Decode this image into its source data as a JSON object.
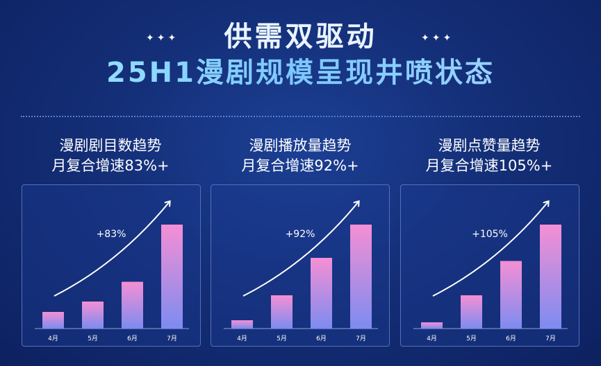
{
  "header": {
    "stars_left": "✦✦✦",
    "stars_right": "✦✦✦",
    "line1": "供需双驱动",
    "line2": "25H1漫剧规模呈现井喷状态"
  },
  "panels": [
    {
      "title": "漫剧剧目数趋势",
      "subtitle": "月复合增速83%+"
    },
    {
      "title": "漫剧播放量趋势",
      "subtitle": "月复合增速92%+"
    },
    {
      "title": "漫剧点赞量趋势",
      "subtitle": "月复合增速105%+"
    }
  ],
  "colors": {
    "bar_top": "#f58fd4",
    "bar_bottom": "#7d8bf0",
    "axis": "#8fa3d9"
  },
  "chart_data": [
    {
      "type": "bar",
      "categories": [
        "4月",
        "5月",
        "6月",
        "7月"
      ],
      "values": [
        16,
        26,
        45,
        100
      ],
      "annotation": "+83%",
      "ylim": [
        0,
        100
      ]
    },
    {
      "type": "bar",
      "categories": [
        "4月",
        "5月",
        "6月",
        "7月"
      ],
      "values": [
        8,
        32,
        68,
        100
      ],
      "annotation": "+92%",
      "ylim": [
        0,
        100
      ]
    },
    {
      "type": "bar",
      "categories": [
        "4月",
        "5月",
        "6月",
        "7月"
      ],
      "values": [
        6,
        32,
        65,
        100
      ],
      "annotation": "+105%",
      "ylim": [
        0,
        100
      ]
    }
  ]
}
